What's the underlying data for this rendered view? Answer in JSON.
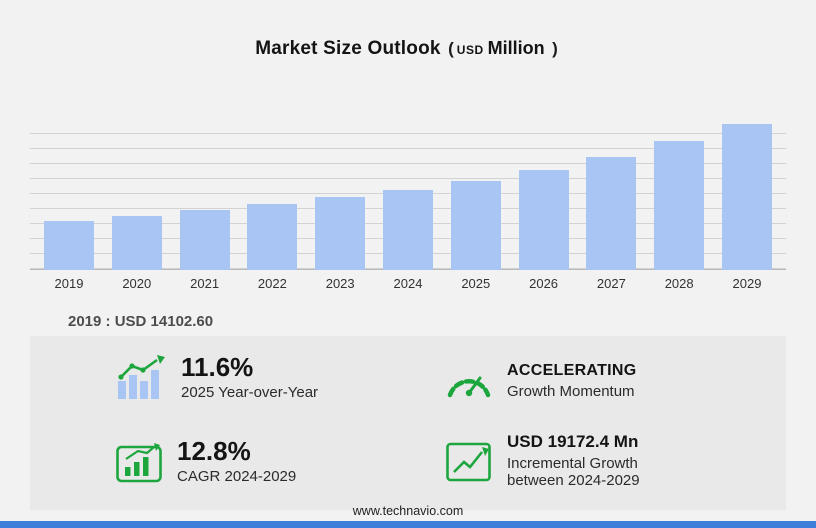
{
  "title": {
    "main": "Market Size Outlook",
    "paren_open": "(",
    "currency": "USD",
    "unit": "Million",
    "paren_close": ")"
  },
  "chart_data": {
    "type": "bar",
    "categories": [
      "2019",
      "2020",
      "2021",
      "2022",
      "2023",
      "2024",
      "2025",
      "2026",
      "2027",
      "2028",
      "2029"
    ],
    "values": [
      14102.6,
      15600,
      17300,
      19100,
      21100,
      23206.3,
      25898.2,
      29100,
      32800,
      37300,
      42378.7
    ],
    "title": "Market Size Outlook (USD Million)",
    "xlabel": "",
    "ylabel": "",
    "ylim": [
      0,
      43500
    ],
    "grid": "horizontal",
    "legend": "none",
    "bar_color": "#a9c5f4"
  },
  "baseline_note": "2019 : USD  14102.60",
  "stats": {
    "yoy": {
      "value": "11.6%",
      "label": "2025 Year-over-Year"
    },
    "momentum": {
      "value": "ACCELERATING",
      "label": "Growth Momentum"
    },
    "cagr": {
      "value": "12.8%",
      "label": "CAGR 2024-2029"
    },
    "incremental": {
      "value": "USD 19172.4 Mn",
      "label_line1": "Incremental Growth",
      "label_line2": "between 2024-2029"
    }
  },
  "icons": {
    "yoy": "bar-chart-growth-icon",
    "momentum": "speedometer-icon",
    "cagr": "cagr-chart-icon",
    "incremental": "incremental-growth-arrow-icon"
  },
  "footer": {
    "url": "www.technavio.com"
  },
  "colors": {
    "accent_green": "#1ea63e",
    "bar_blue": "#a9c5f4",
    "footer_blue": "#3d7edb",
    "page_bg": "#f2f2f2",
    "panel_bg": "#e9e9e9"
  }
}
